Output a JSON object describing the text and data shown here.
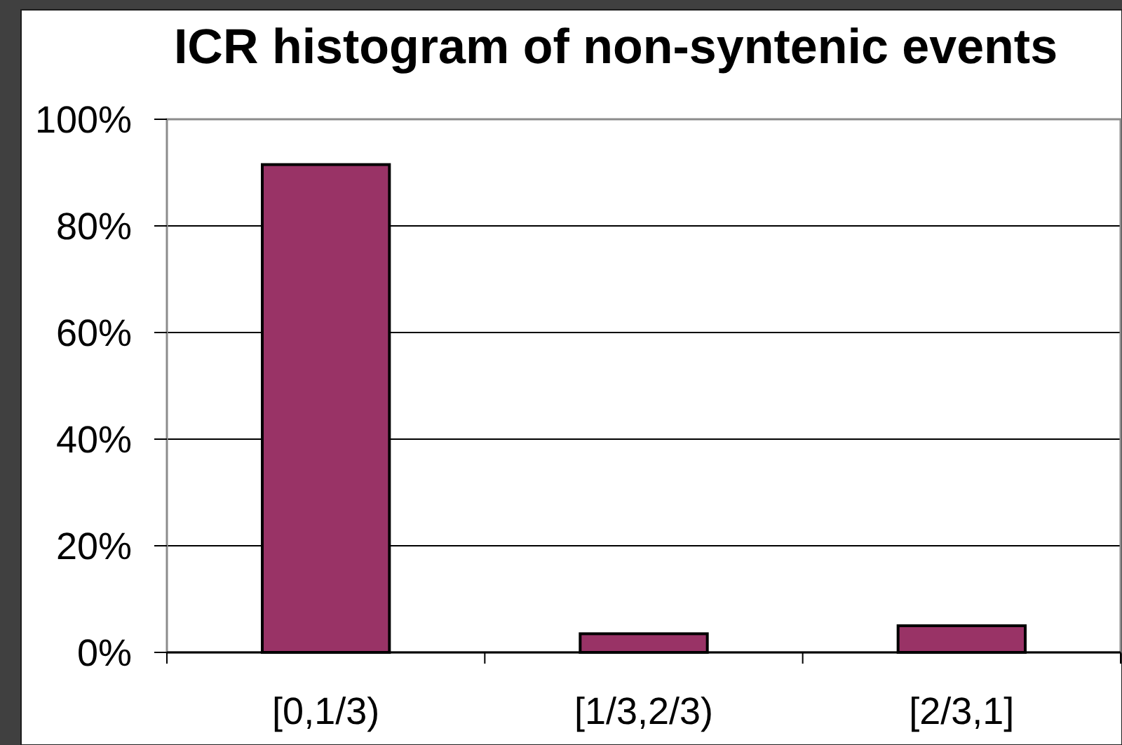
{
  "chart_data": {
    "type": "bar",
    "title": "ICR histogram of non-syntenic events",
    "categories": [
      "[0,1/3)",
      "[1/3,2/3)",
      "[2/3,1]"
    ],
    "values": [
      91.5,
      3.5,
      5
    ],
    "color": "#993366",
    "ylim": [
      0,
      100
    ],
    "yticks": [
      {
        "value": 0,
        "label": "0%"
      },
      {
        "value": 20,
        "label": "20%"
      },
      {
        "value": 40,
        "label": "40%"
      },
      {
        "value": 60,
        "label": "60%"
      },
      {
        "value": 80,
        "label": "80%"
      },
      {
        "value": 100,
        "label": "100%"
      }
    ],
    "grid": "y"
  }
}
